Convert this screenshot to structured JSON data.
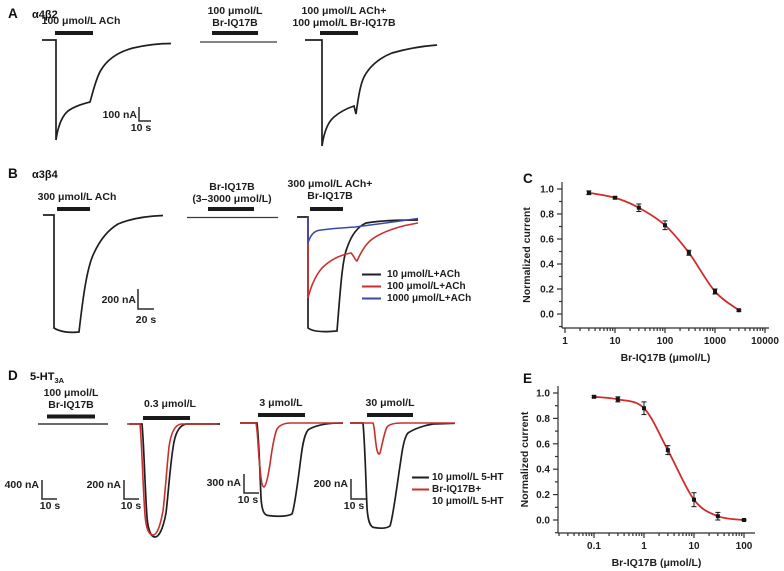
{
  "colors": {
    "trace_black": "#1f1f1f",
    "trace_red": "#c8302e",
    "trace_blue": "#3b4aa8",
    "fit_red": "#d22b2b"
  },
  "panel_a": {
    "letter": "A",
    "receptor": "α4β2",
    "trace1_label": "100 μmol/L ACh",
    "trace2_label_line1": "100 μmol/L",
    "trace2_label_line2": "Br-IQ17B",
    "trace3_label_line1": "100 μmol/L ACh+",
    "trace3_label_line2": "100 μmol/L Br-IQ17B",
    "scale_current": "100 nA",
    "scale_time": "10 s"
  },
  "panel_b": {
    "letter": "B",
    "receptor": "α3β4",
    "trace1_label": "300 μmol/L ACh",
    "trace2_label_line1": "Br-IQ17B",
    "trace2_label_line2": "(3–3000 μmol/L)",
    "trace3_label_line1": "300 μmol/L ACh+",
    "trace3_label_line2": "Br-IQ17B",
    "scale_current": "200 nA",
    "scale_time": "20 s",
    "legend": [
      {
        "label": "10 μmol/L+ACh",
        "color": "#1f1f1f"
      },
      {
        "label": "100 μmol/L+ACh",
        "color": "#c8302e"
      },
      {
        "label": "1000 μmol/L+ACh",
        "color": "#3b4aa8"
      }
    ]
  },
  "panel_d": {
    "letter": "D",
    "receptor_base": "5-HT",
    "receptor_sub": "3A",
    "control_label_line1": "100 μmol/L",
    "control_label_line2": "Br-IQ17B",
    "trace2_label": "0.3 μmol/L",
    "trace3_label": "3 μmol/L",
    "trace4_label": "30 μmol/L",
    "scale1_current": "400 nA",
    "scale1_time": "10 s",
    "scale2_current": "200 nA",
    "scale2_time": "10 s",
    "scale3_current": "300 nA",
    "scale3_time": "10 s",
    "scale4_current": "200 nA",
    "scale4_time": "10 s",
    "legend_black_label": "10 μmol/L 5-HT",
    "legend_red_line1": "Br-IQ17B+",
    "legend_red_line2": "10 μmol/L 5-HT"
  },
  "chart_data": [
    {
      "type": "scatter",
      "panel": "C",
      "xlabel": "Br-IQ17B (μmol/L)",
      "ylabel": "Normalized current",
      "x_scale": "log",
      "xlim": [
        1,
        10000
      ],
      "ylim": [
        -0.05,
        1.05
      ],
      "x_ticks": [
        1,
        10,
        100,
        1000,
        10000
      ],
      "y_ticks": [
        0.0,
        0.2,
        0.4,
        0.6,
        0.8,
        1.0
      ],
      "x": [
        3,
        10,
        30,
        100,
        300,
        1000,
        3000
      ],
      "y": [
        0.97,
        0.93,
        0.85,
        0.71,
        0.49,
        0.18,
        0.03
      ],
      "yerr": [
        0.015,
        0.01,
        0.03,
        0.035,
        0.02,
        0.02,
        0.008
      ],
      "fit": "sigmoidal inhibition curve through points",
      "fit_color": "#d22b2b",
      "point_color": "#141414",
      "legend_position": "none",
      "grid": false
    },
    {
      "type": "scatter",
      "panel": "E",
      "xlabel": "Br-IQ17B (μmol/L)",
      "ylabel": "Normalized current",
      "x_scale": "log",
      "xlim": [
        0.03,
        300
      ],
      "ylim": [
        -0.05,
        1.05
      ],
      "x_ticks": [
        0.1,
        1,
        10,
        100
      ],
      "y_ticks": [
        0.0,
        0.2,
        0.4,
        0.6,
        0.8,
        1.0
      ],
      "x": [
        0.1,
        0.3,
        1,
        3,
        10,
        30,
        100
      ],
      "y": [
        0.97,
        0.95,
        0.88,
        0.55,
        0.16,
        0.03,
        0.0
      ],
      "yerr": [
        0.008,
        0.02,
        0.05,
        0.035,
        0.055,
        0.03,
        0.005
      ],
      "fit": "sigmoidal inhibition curve through points",
      "fit_color": "#d22b2b",
      "point_color": "#141414",
      "legend_position": "none",
      "grid": false
    }
  ]
}
